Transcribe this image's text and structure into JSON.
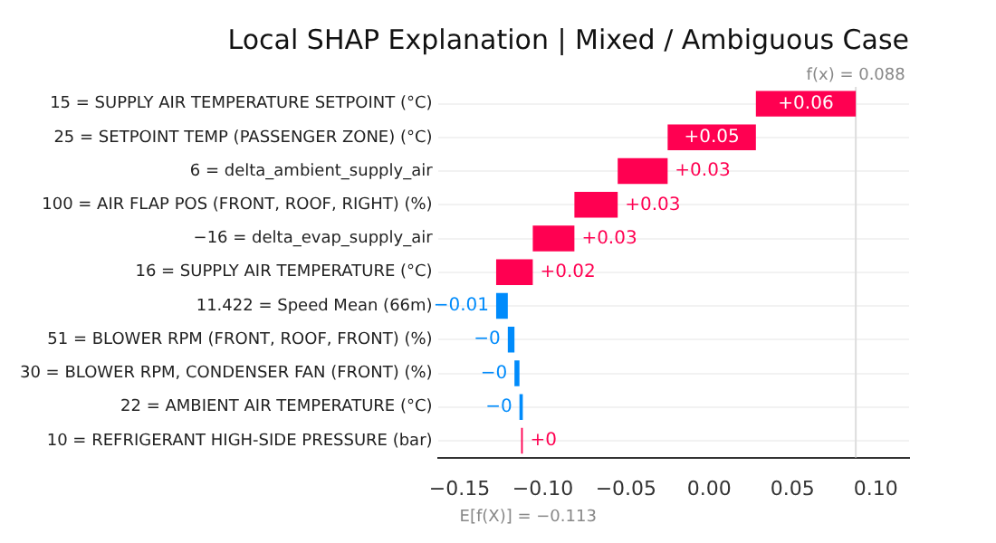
{
  "chart_data": {
    "type": "bar",
    "orientation": "horizontal",
    "title": "Local SHAP Explanation | Mixed / Ambiguous Case",
    "categories": [
      "15 = SUPPLY AIR TEMPERATURE SETPOINT (°C)",
      "25 = SETPOINT TEMP (PASSENGER ZONE) (°C)",
      "6 = delta_ambient_supply_air",
      "100 = AIR FLAP POS (FRONT, ROOF, RIGHT) (%)",
      "−16 = delta_evap_supply_air",
      "16 = SUPPLY AIR TEMPERATURE (°C)",
      "11.422 = Speed Mean (66m)",
      "51 = BLOWER RPM (FRONT, ROOF, FRONT) (%)",
      "30 = BLOWER RPM, CONDENSER FAN (FRONT) (%)",
      "22 = AMBIENT AIR TEMPERATURE (°C)",
      "10 = REFRIGERANT HIGH-SIDE PRESSURE (bar)"
    ],
    "values": [
      0.06,
      0.053,
      0.03,
      0.026,
      0.025,
      0.022,
      -0.007,
      -0.004,
      -0.003,
      -0.002,
      0.001
    ],
    "base": [
      0.028,
      -0.025,
      -0.055,
      -0.081,
      -0.106,
      -0.128,
      -0.121,
      -0.117,
      -0.114,
      -0.112,
      -0.113
    ],
    "colors": [
      "#ff0051",
      "#ff0051",
      "#ff0051",
      "#ff0051",
      "#ff0051",
      "#ff0051",
      "#008bfb",
      "#008bfb",
      "#008bfb",
      "#008bfb",
      "#ff0051"
    ],
    "value_labels": [
      "+0.06",
      "+0.05",
      "+0.03",
      "+0.03",
      "+0.03",
      "+0.02",
      "−0.01",
      "−0",
      "−0",
      "−0",
      "+0"
    ],
    "xlim": [
      -0.163,
      0.12
    ],
    "xticks": [
      {
        "value": -0.15,
        "label": "−0.15"
      },
      {
        "value": -0.1,
        "label": "−0.10"
      },
      {
        "value": -0.05,
        "label": "−0.05"
      },
      {
        "value": 0,
        "label": "0.00"
      },
      {
        "value": 0.05,
        "label": "0.05"
      },
      {
        "value": 0.1,
        "label": "0.10"
      }
    ],
    "ref_lines": [
      {
        "axis": "x",
        "value": 0.088,
        "label": "f(x) = 0.088",
        "color": "#dddddd"
      }
    ],
    "annotations": [
      "E[f(X)] = −0.113"
    ],
    "grid": "y",
    "legend": false
  }
}
